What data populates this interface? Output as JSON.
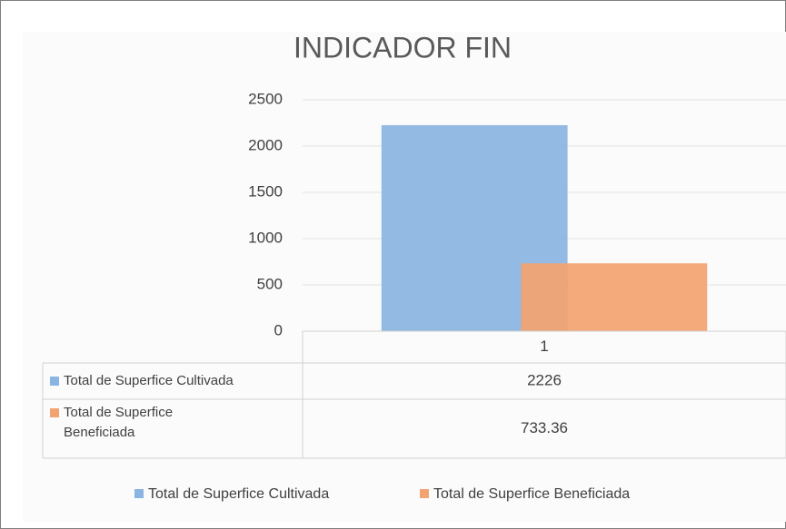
{
  "chart_data": {
    "type": "bar",
    "title": "INDICADOR FIN",
    "categories": [
      "1"
    ],
    "series": [
      {
        "name": "Total de Superfice Cultivada",
        "color": "#8ab4e1",
        "values": [
          2226
        ]
      },
      {
        "name": "Total de Superfice Beneficiada",
        "color": "#f3a36f",
        "values": [
          733.36
        ]
      }
    ],
    "ylim": [
      0,
      2500
    ],
    "yticks": [
      0,
      500,
      1000,
      1500,
      2000,
      2500
    ],
    "grid": true,
    "legend": "bottom",
    "data_table": true
  }
}
